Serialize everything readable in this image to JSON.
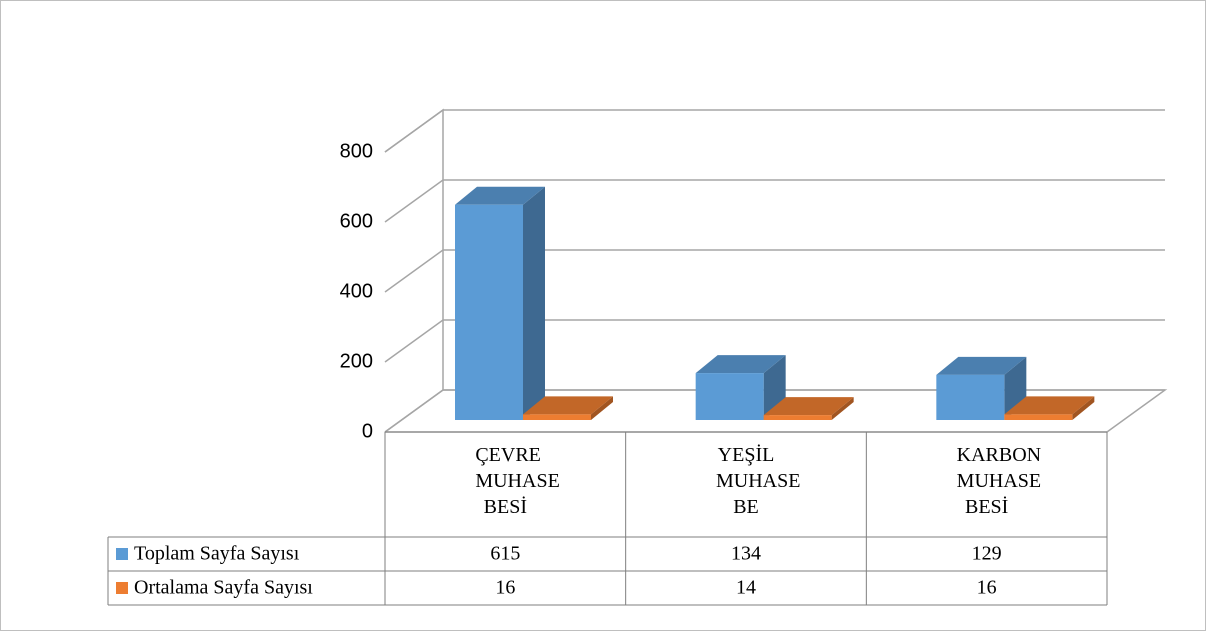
{
  "chart_data": {
    "type": "bar3d",
    "categories": [
      "ÇEVRE MUHASE BESİ",
      "YEŞİL MUHASE BE",
      "KARBON MUHASE BESİ"
    ],
    "series": [
      {
        "name": "Toplam Sayfa Sayısı",
        "color": "#5b9bd5",
        "values": [
          615,
          134,
          129
        ]
      },
      {
        "name": "Ortalama Sayfa Sayısı",
        "color": "#ed7d31",
        "values": [
          16,
          14,
          16
        ]
      }
    ],
    "ylim": [
      0,
      800
    ],
    "yticks": [
      0,
      200,
      400,
      600,
      800
    ],
    "grid": true,
    "data_table": true
  }
}
